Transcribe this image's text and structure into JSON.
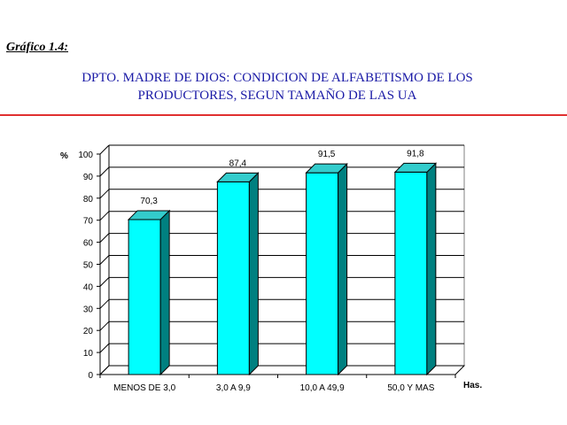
{
  "figure_label": "Gráfico 1.4:",
  "title_lines": [
    "DPTO. MADRE DE DIOS: CONDICION DE ALFABETISMO DE LOS",
    "PRODUCTORES, SEGUN TAMAÑO DE LAS UA"
  ],
  "colors": {
    "title": "#1a1aa6",
    "rule": "#e03030",
    "bar_front": "#00ffff",
    "bar_side": "#008080",
    "bar_top": "#33cccc"
  },
  "chart_data": {
    "type": "bar",
    "categories": [
      "MENOS DE 3,0",
      "3,0 A 9,9",
      "10,0 A 49,9",
      "50,0 Y MAS"
    ],
    "values": [
      70.3,
      87.4,
      91.5,
      91.8
    ],
    "data_labels": [
      "70,3",
      "87,4",
      "91,5",
      "91,8"
    ],
    "ylabel": "%",
    "xlabel": "Has.",
    "ylim": [
      0,
      100
    ],
    "yticks": [
      0,
      10,
      20,
      30,
      40,
      50,
      60,
      70,
      80,
      90,
      100
    ],
    "grid": true,
    "legend": "none",
    "style": "3d"
  }
}
